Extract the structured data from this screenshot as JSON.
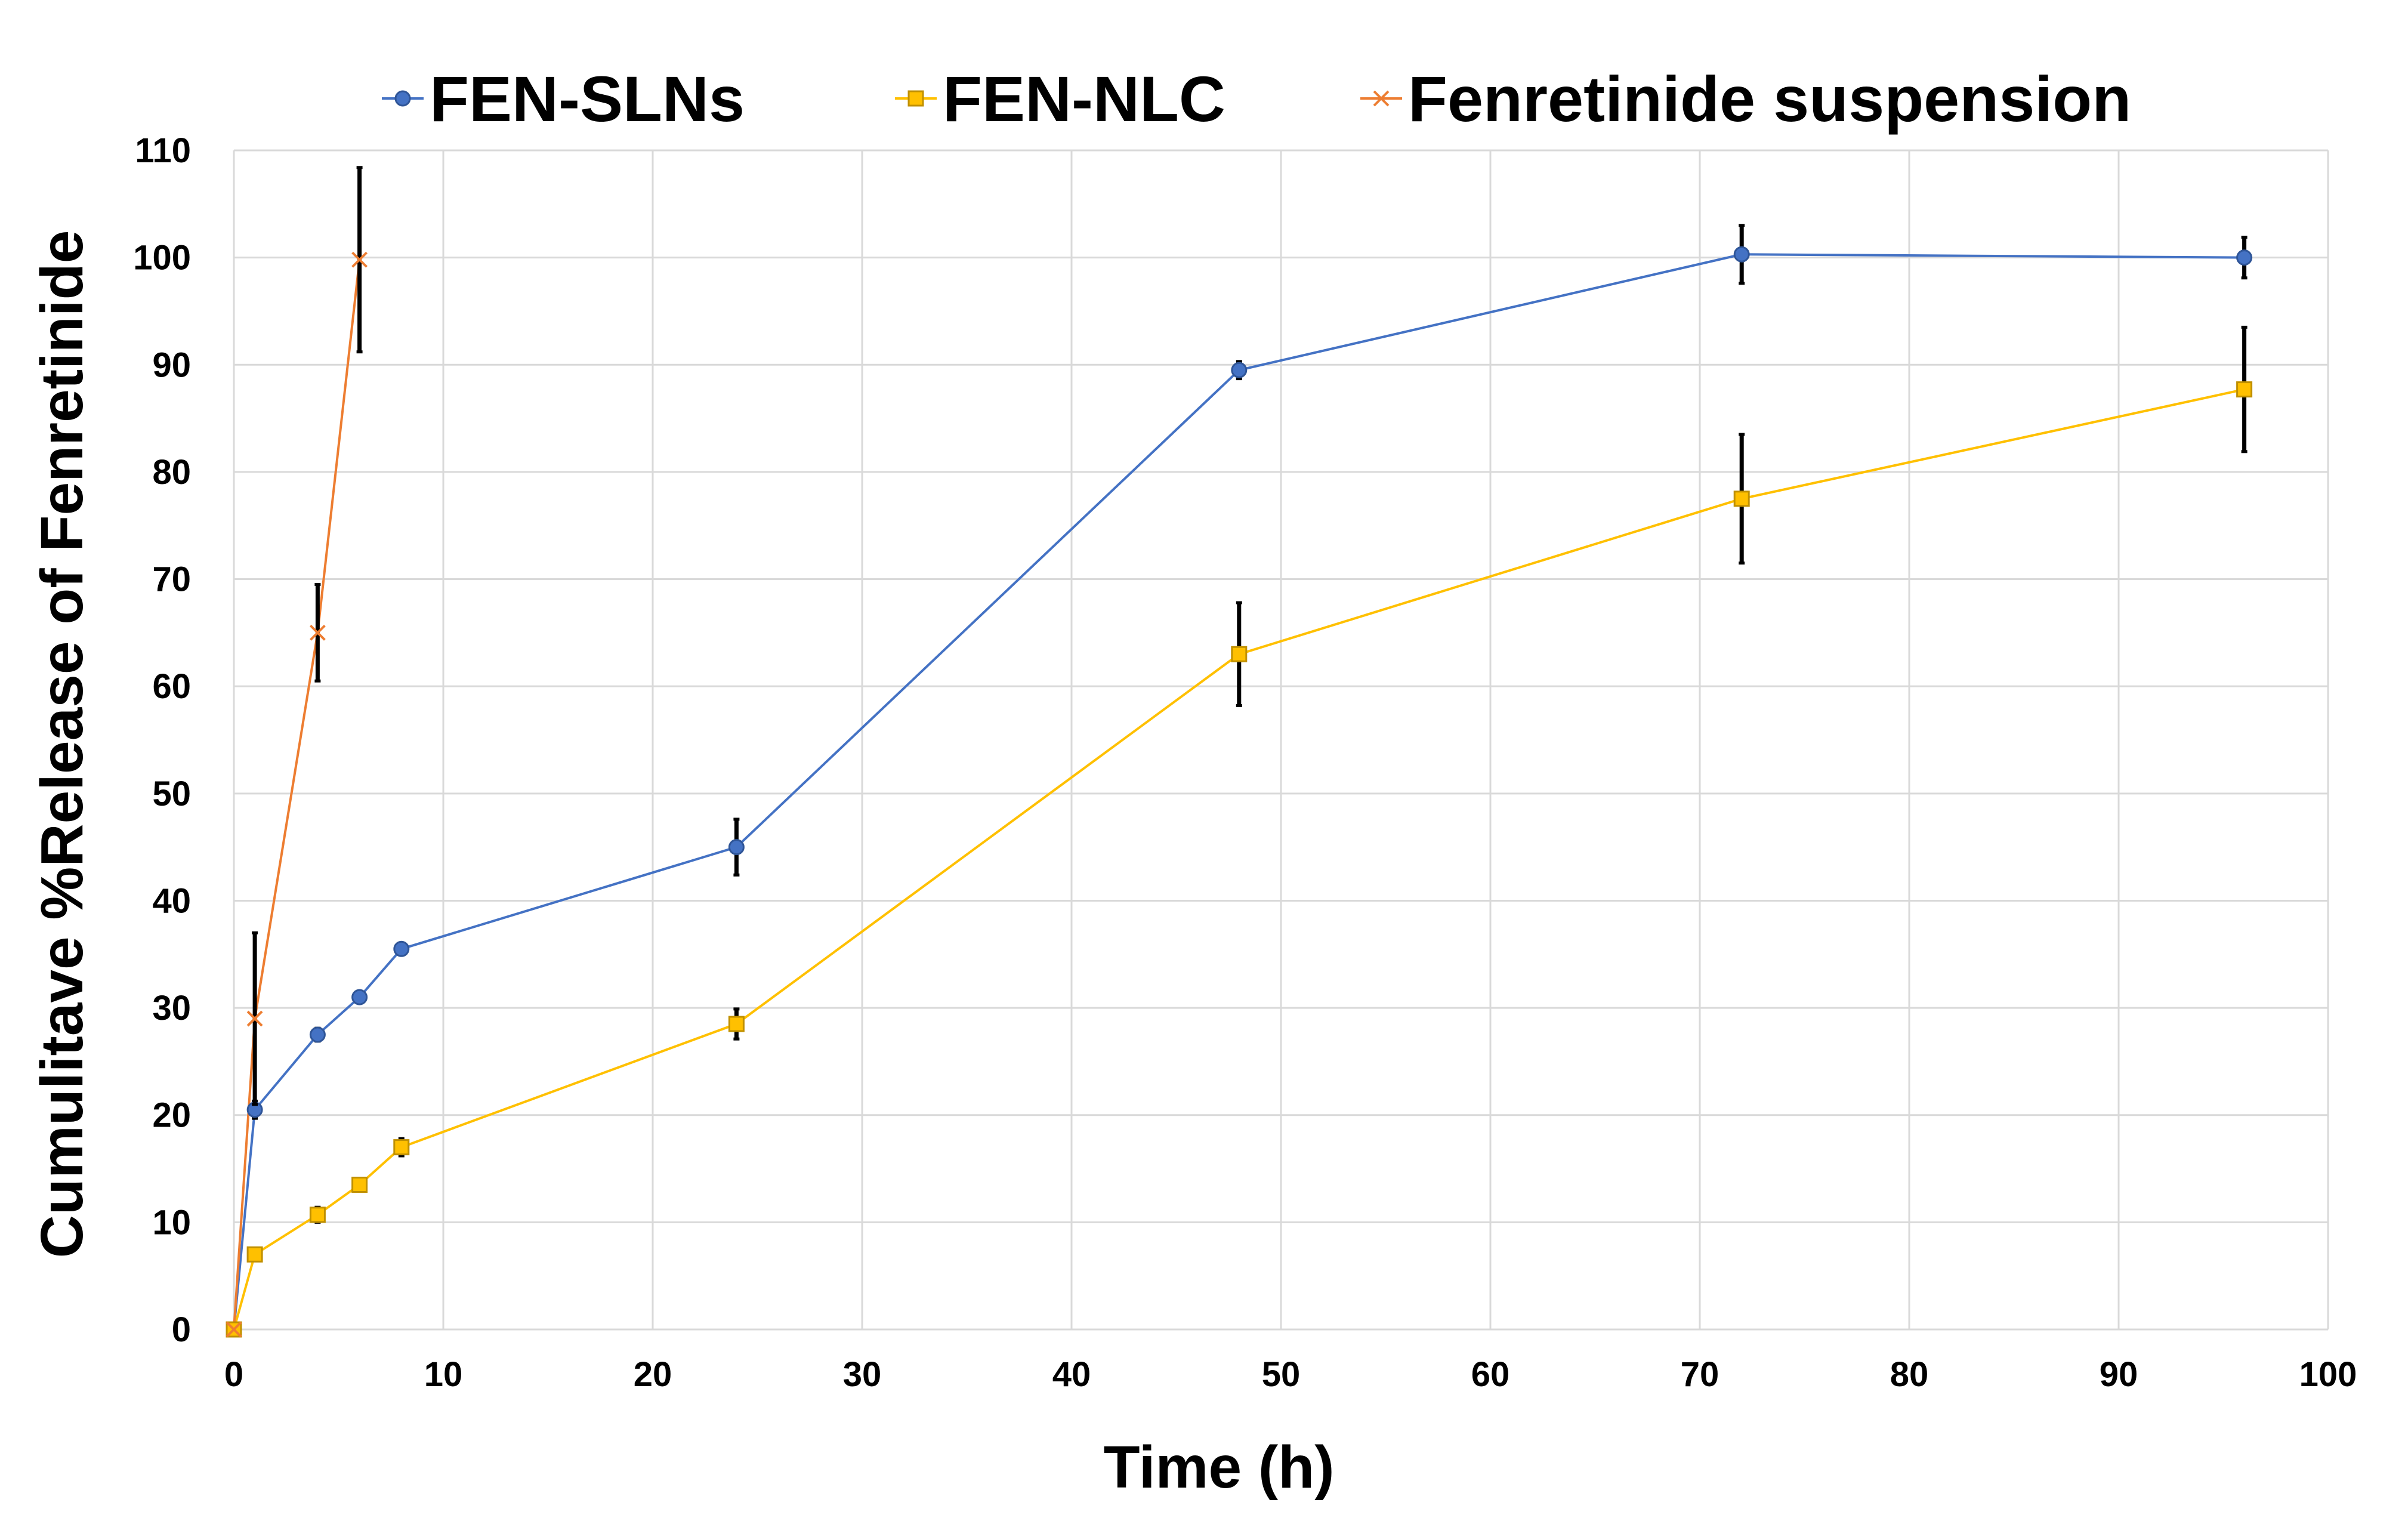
{
  "chart_data": {
    "type": "line",
    "xlabel": "Time (h)",
    "ylabel": "Cumulitave %Release of Fenretinide",
    "xlim": [
      0,
      100
    ],
    "ylim": [
      0,
      110
    ],
    "x_ticks": [
      "0",
      "10",
      "20",
      "30",
      "40",
      "50",
      "60",
      "70",
      "80",
      "90",
      "100"
    ],
    "y_ticks": [
      "0",
      "10",
      "20",
      "30",
      "40",
      "50",
      "60",
      "70",
      "80",
      "90",
      "100",
      "110"
    ],
    "grid": true,
    "legend_position": "top",
    "error_bar_color": "#000000",
    "series": [
      {
        "name": "FEN-SLNs",
        "color": "#4472C4",
        "marker": "circle",
        "x": [
          0,
          1,
          4,
          6,
          8,
          24,
          48,
          72,
          96
        ],
        "y": [
          0,
          20.5,
          27.5,
          31,
          35.5,
          45,
          89.5,
          100.3,
          100
        ],
        "error": [
          0,
          0.8,
          0.6,
          0.5,
          0.5,
          2.6,
          0.8,
          2.7,
          1.9
        ]
      },
      {
        "name": "FEN-NLC",
        "color": "#FFC000",
        "marker": "square",
        "x": [
          0,
          1,
          4,
          6,
          8,
          24,
          48,
          72,
          96
        ],
        "y": [
          0,
          7,
          10.7,
          13.5,
          17,
          28.5,
          63,
          77.5,
          87.7
        ],
        "error": [
          0,
          0.3,
          0.7,
          0.4,
          0.8,
          1.4,
          4.8,
          6,
          5.8
        ]
      },
      {
        "name": "Fenretinide suspension",
        "color": "#ED7D31",
        "marker": "cross",
        "x": [
          0,
          1,
          4,
          6
        ],
        "y": [
          0,
          29,
          65,
          99.8
        ],
        "error": [
          0,
          8,
          4.5,
          8.6
        ]
      }
    ]
  }
}
